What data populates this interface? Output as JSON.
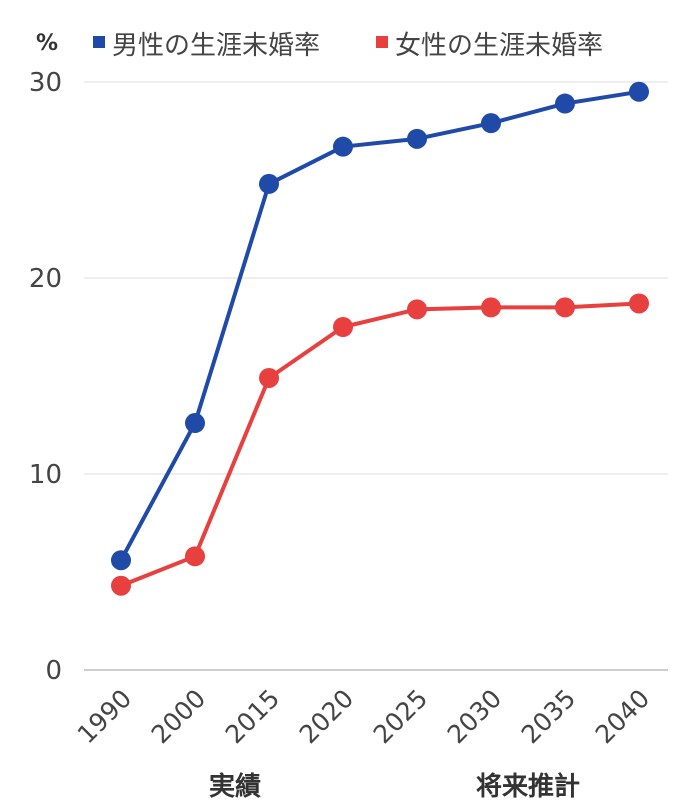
{
  "chart_data": {
    "type": "line",
    "y_unit": "%",
    "categories": [
      "1990",
      "2000",
      "2015",
      "2020",
      "2025",
      "2030",
      "2035",
      "2040"
    ],
    "series": [
      {
        "name": "男性の生涯未婚率",
        "color": "#1f4aa8",
        "values": [
          5.6,
          12.6,
          24.8,
          26.7,
          27.1,
          27.9,
          28.9,
          29.5
        ]
      },
      {
        "name": "女性の生涯未婚率",
        "color": "#e8403f",
        "values": [
          4.3,
          5.8,
          14.9,
          17.5,
          18.4,
          18.5,
          18.5,
          18.7
        ]
      }
    ],
    "ylim": [
      0,
      30
    ],
    "yticks": [
      0,
      10,
      20,
      30
    ],
    "grid": true,
    "legend": "top",
    "group_labels": [
      {
        "label": "実績",
        "categories": [
          "1990",
          "2000",
          "2015",
          "2020"
        ]
      },
      {
        "label": "将来推計",
        "categories": [
          "2025",
          "2030",
          "2035",
          "2040"
        ]
      }
    ]
  }
}
